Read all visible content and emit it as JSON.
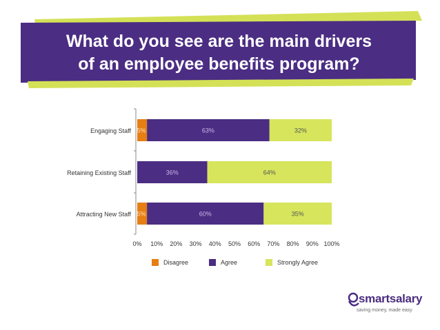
{
  "slide": {
    "title_line1": "What do you see are the main drivers",
    "title_line2": "of an employee benefits program?"
  },
  "colors": {
    "banner_purple": "#4b2d83",
    "banner_accent": "#d4e157",
    "disagree": "#e67e13",
    "agree": "#4b2d83",
    "strongly_agree": "#d6e55c"
  },
  "chart_data": {
    "type": "bar",
    "orientation": "horizontal",
    "stacked": true,
    "categories": [
      "Engaging Staff",
      "Retaining Existing Staff",
      "Attracting New Staff"
    ],
    "series": [
      {
        "name": "Disagree",
        "values": [
          5,
          0,
          5
        ]
      },
      {
        "name": "Agree",
        "values": [
          63,
          36,
          60
        ]
      },
      {
        "name": "Strongly Agree",
        "values": [
          32,
          64,
          35
        ]
      }
    ],
    "x_ticks": [
      "0%",
      "10%",
      "20%",
      "30%",
      "40%",
      "50%",
      "60%",
      "70%",
      "80%",
      "90%",
      "100%"
    ],
    "xlim": [
      0,
      100
    ],
    "unit": "%",
    "grid": false,
    "legend_position": "bottom"
  },
  "logo": {
    "name": "smartsalary",
    "tagline": "saving money, made easy"
  }
}
